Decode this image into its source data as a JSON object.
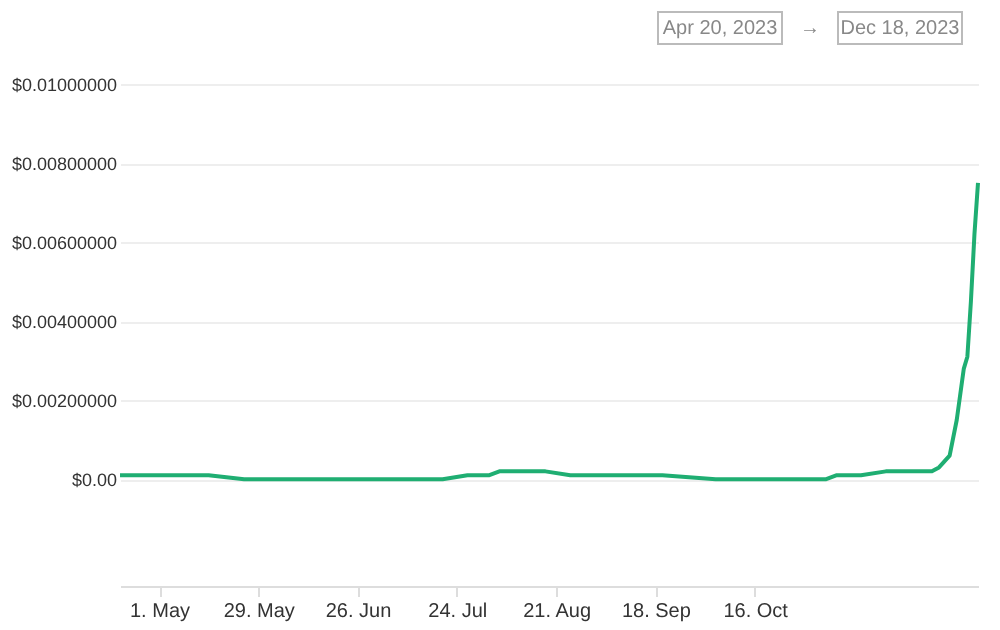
{
  "chart_data": {
    "type": "line",
    "annotations": [
      "Apr 20, 2023",
      "→",
      "Dec 18, 2023"
    ],
    "x": [
      "2023-04-20",
      "2023-04-25",
      "2023-04-29",
      "2023-05-05",
      "2023-05-15",
      "2023-05-25",
      "2023-06-05",
      "2023-06-20",
      "2023-07-05",
      "2023-07-20",
      "2023-07-27",
      "2023-07-31",
      "2023-08-02",
      "2023-08-05",
      "2023-08-10",
      "2023-08-18",
      "2023-08-25",
      "2023-09-05",
      "2023-09-20",
      "2023-10-05",
      "2023-10-20",
      "2023-11-05",
      "2023-11-08",
      "2023-11-15",
      "2023-11-22",
      "2023-12-01",
      "2023-12-05",
      "2023-12-07",
      "2023-12-10",
      "2023-12-12",
      "2023-12-14",
      "2023-12-15",
      "2023-12-16",
      "2023-12-17",
      "2023-12-18"
    ],
    "series": [
      {
        "color": "#1fae72",
        "values": [
          0.0001,
          0.0001,
          0.0001,
          0.0001,
          0.0001,
          0.0,
          0.0,
          0.0,
          0.0,
          0.0,
          0.0001,
          0.0001,
          0.0001,
          0.0002,
          0.0002,
          0.0002,
          0.0001,
          0.0001,
          0.0001,
          0.0,
          0.0,
          0.0,
          0.0001,
          0.0001,
          0.0002,
          0.0002,
          0.0002,
          0.0003,
          0.0006,
          0.0015,
          0.0028,
          0.0031,
          0.0045,
          0.0062,
          0.0075
        ]
      }
    ],
    "xlim": [
      "2023-04-20",
      "2023-12-18"
    ],
    "xticks": [
      {
        "value": "2023-05-01",
        "label": "1. May"
      },
      {
        "value": "2023-05-29",
        "label": "29. May"
      },
      {
        "value": "2023-06-26",
        "label": "26. Jun"
      },
      {
        "value": "2023-07-24",
        "label": "24. Jul"
      },
      {
        "value": "2023-08-21",
        "label": "21. Aug"
      },
      {
        "value": "2023-09-18",
        "label": "18. Sep"
      },
      {
        "value": "2023-10-16",
        "label": "16. Oct"
      }
    ],
    "ylim": [
      -0.0027,
      0.01
    ],
    "yticks": [
      {
        "value": 0,
        "label": "$0.00"
      },
      {
        "value": 0.002,
        "label": "$0.00200000"
      },
      {
        "value": 0.004,
        "label": "$0.00400000"
      },
      {
        "value": 0.006,
        "label": "$0.00600000"
      },
      {
        "value": 0.008,
        "label": "$0.00800000"
      },
      {
        "value": 0.01,
        "label": "$0.01000000"
      }
    ],
    "grid": "y",
    "legend": false,
    "marker": "none",
    "line_style": "solid"
  }
}
